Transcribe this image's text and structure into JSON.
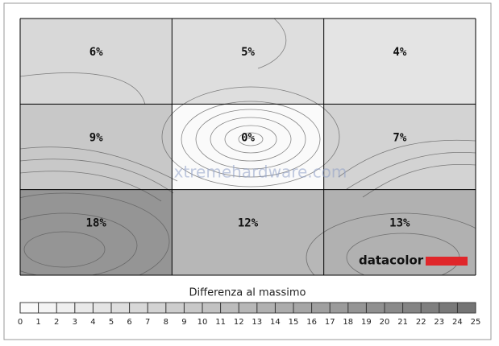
{
  "chart_data": {
    "type": "heatmap",
    "rows": [
      [
        6,
        5,
        4
      ],
      [
        9,
        0,
        7
      ],
      [
        18,
        12,
        13
      ]
    ],
    "value_labels": [
      [
        "6%",
        "5%",
        "4%"
      ],
      [
        "9%",
        "0%",
        "7%"
      ],
      [
        "18%",
        "12%",
        "13%"
      ]
    ],
    "colorbar": {
      "title": "Differenza al massimo",
      "lim": [
        0,
        25
      ],
      "ticks": [
        0,
        1,
        2,
        3,
        4,
        5,
        6,
        7,
        8,
        9,
        10,
        11,
        12,
        13,
        14,
        15,
        16,
        17,
        18,
        19,
        20,
        21,
        22,
        23,
        24,
        25
      ]
    }
  },
  "watermark": "xtremehardware.com",
  "logo": "datacolor"
}
